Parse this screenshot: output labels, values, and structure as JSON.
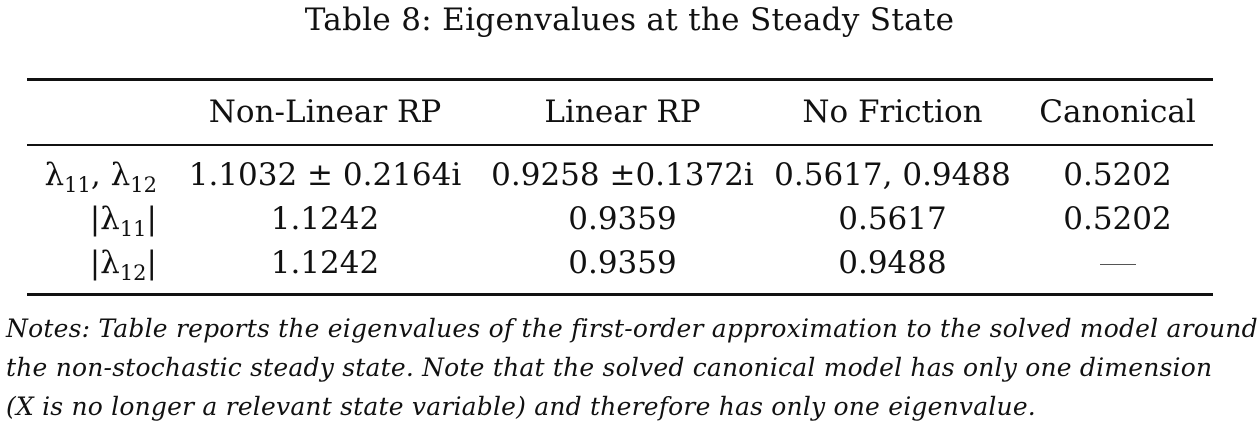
{
  "table": {
    "caption": "Table 8: Eigenvalues at the Steady State",
    "columns": [
      "Non-Linear RP",
      "Linear RP",
      "No Friction",
      "Canonical"
    ],
    "rows": [
      {
        "label": {
          "pre": "λ",
          "sub1": "11",
          "mid": ", λ",
          "sub2": "12",
          "post": ""
        },
        "values": [
          "1.1032 ± 0.2164i",
          "0.9258 ±0.1372i",
          "0.5617, 0.9488",
          "0.5202"
        ]
      },
      {
        "label": {
          "pre": "|λ",
          "sub1": "11",
          "post": "|"
        },
        "values": [
          "1.1242",
          "0.9359",
          "0.5617",
          "0.5202"
        ]
      },
      {
        "label": {
          "pre": "|λ",
          "sub1": "12",
          "post": "|"
        },
        "values": [
          "1.1242",
          "0.9359",
          "0.9488",
          "—"
        ]
      }
    ]
  },
  "notes": {
    "lines": [
      "Notes: Table reports the eigenvalues of the first-order approximation to the solved model around",
      "the non-stochastic steady state. Note that the solved canonical model has only one dimension",
      "(X is no longer a relevant state variable) and therefore has only one eigenvalue."
    ]
  }
}
